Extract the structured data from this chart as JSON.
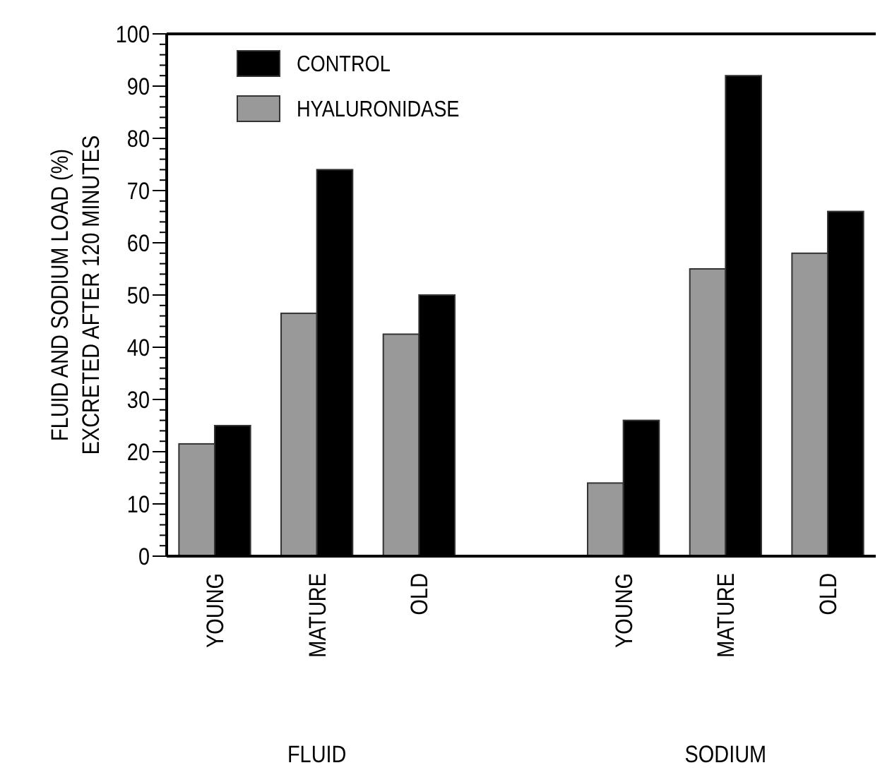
{
  "chart_data": {
    "type": "bar",
    "ylabel": "FLUID AND SODIUM LOAD (%)\nEXCRETED AFTER 120 MINUTES",
    "categories": [
      "YOUNG",
      "MATURE",
      "OLD",
      null,
      "YOUNG",
      "MATURE",
      "OLD"
    ],
    "series": [
      {
        "name": "HYALURONIDASE",
        "color": "#999999",
        "values": [
          21.5,
          46.5,
          42.5,
          null,
          14,
          55,
          58
        ]
      },
      {
        "name": "CONTROL",
        "color": "#000000",
        "values": [
          25,
          74,
          50,
          null,
          26,
          92,
          66
        ]
      }
    ],
    "ylim": [
      0,
      100
    ],
    "yticks": [
      0,
      {
        "value": 2,
        "label": null
      },
      {
        "value": 4,
        "label": null
      },
      {
        "value": 6,
        "label": null
      },
      {
        "value": 8,
        "label": null
      },
      10,
      {
        "value": 12,
        "label": null
      },
      {
        "value": 14,
        "label": null
      },
      {
        "value": 16,
        "label": null
      },
      {
        "value": 18,
        "label": null
      },
      20,
      {
        "value": 22,
        "label": null
      },
      {
        "value": 24,
        "label": null
      },
      {
        "value": 26,
        "label": null
      },
      {
        "value": 28,
        "label": null
      },
      30,
      {
        "value": 32,
        "label": null
      },
      {
        "value": 34,
        "label": null
      },
      {
        "value": 36,
        "label": null
      },
      {
        "value": 38,
        "label": null
      },
      40,
      {
        "value": 42,
        "label": null
      },
      {
        "value": 44,
        "label": null
      },
      {
        "value": 46,
        "label": null
      },
      {
        "value": 48,
        "label": null
      },
      50,
      {
        "value": 52,
        "label": null
      },
      {
        "value": 54,
        "label": null
      },
      {
        "value": 56,
        "label": null
      },
      {
        "value": 58,
        "label": null
      },
      60,
      {
        "value": 62,
        "label": null
      },
      {
        "value": 64,
        "label": null
      },
      {
        "value": 66,
        "label": null
      },
      {
        "value": 68,
        "label": null
      },
      70,
      {
        "value": 72,
        "label": null
      },
      {
        "value": 74,
        "label": null
      },
      {
        "value": 76,
        "label": null
      },
      {
        "value": 78,
        "label": null
      },
      80,
      {
        "value": 82,
        "label": null
      },
      {
        "value": 84,
        "label": null
      },
      {
        "value": 86,
        "label": null
      },
      {
        "value": 88,
        "label": null
      },
      90,
      {
        "value": 92,
        "label": null
      },
      {
        "value": 94,
        "label": null
      },
      {
        "value": 96,
        "label": null
      },
      {
        "value": 98,
        "label": null
      },
      100
    ],
    "annotations": [
      "FLUID",
      "SODIUM"
    ],
    "legend": "top left",
    "grid": false
  }
}
